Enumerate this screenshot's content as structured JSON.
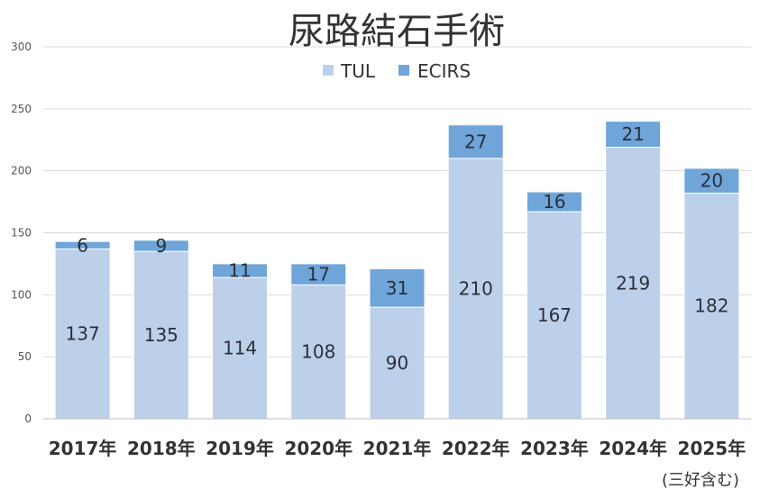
{
  "chart_data": {
    "type": "bar",
    "stacked": true,
    "title": "尿路結石手術",
    "categories": [
      "2017年",
      "2018年",
      "2019年",
      "2020年",
      "2021年",
      "2022年",
      "2023年",
      "2024年",
      "2025年"
    ],
    "category_note": {
      "index": 8,
      "text": "(三好含む)"
    },
    "series": [
      {
        "name": "TUL",
        "color": "#bdd0ea",
        "values": [
          137,
          135,
          114,
          108,
          90,
          210,
          167,
          219,
          182
        ]
      },
      {
        "name": "ECIRS",
        "color": "#6fa5d9",
        "values": [
          6,
          9,
          11,
          17,
          31,
          27,
          16,
          21,
          20
        ]
      }
    ],
    "ylim": [
      0,
      300
    ],
    "yticks": [
      0,
      50,
      100,
      150,
      200,
      250,
      300
    ],
    "grid": true,
    "legend_position": "top-center"
  }
}
